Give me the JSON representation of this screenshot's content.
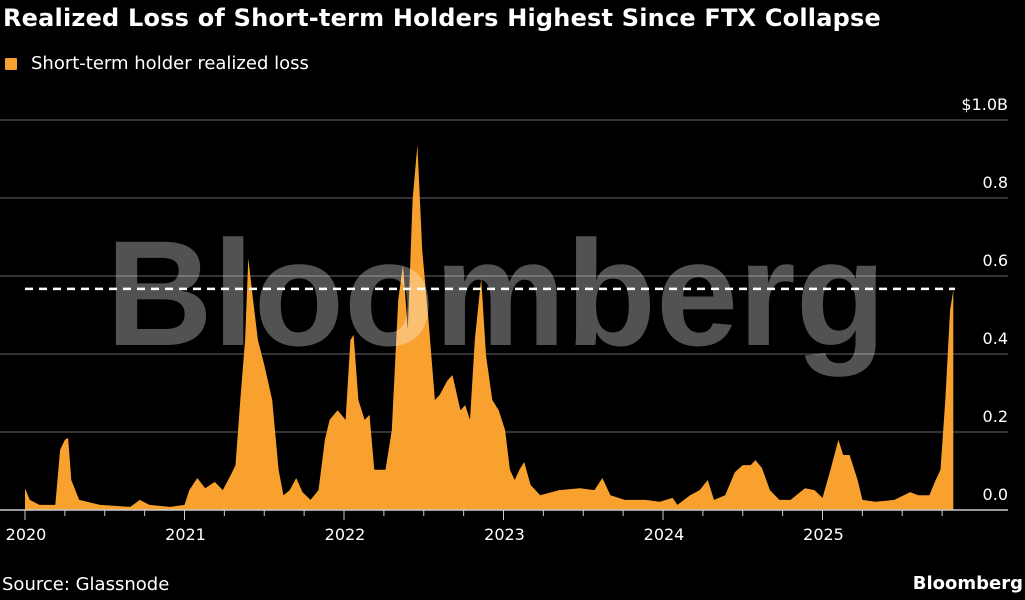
{
  "chart_data": {
    "type": "area",
    "title": "Realized Loss of Short-term Holders Highest Since FTX Collapse",
    "legend": [
      "Short-term holder realized loss"
    ],
    "legend_placement": "top-left",
    "xlabel": "",
    "ylabel": "",
    "xlim": [
      2020.0,
      2026.0
    ],
    "ylim": [
      0.0,
      1.0
    ],
    "y_ticks": [
      {
        "v": 0.0,
        "label": "0.0"
      },
      {
        "v": 0.2,
        "label": "0.2"
      },
      {
        "v": 0.4,
        "label": "0.4"
      },
      {
        "v": 0.6,
        "label": "0.6"
      },
      {
        "v": 0.8,
        "label": "0.8"
      },
      {
        "v": 1.0,
        "label": "$1.0B"
      }
    ],
    "x_ticks": [
      {
        "v": 2020,
        "label": "2020"
      },
      {
        "v": 2021,
        "label": "2021"
      },
      {
        "v": 2022,
        "label": "2022"
      },
      {
        "v": 2023,
        "label": "2023"
      },
      {
        "v": 2024,
        "label": "2024"
      },
      {
        "v": 2025,
        "label": "2025"
      }
    ],
    "grid": true,
    "reference_line": {
      "value": 0.567,
      "style": "dashed"
    },
    "series": [
      {
        "name": "Short-term holder realized loss",
        "color": "#f9a12e",
        "x": [
          2020.0,
          2020.03,
          2020.09,
          2020.19,
          2020.22,
          2020.25,
          2020.27,
          2020.29,
          2020.34,
          2020.47,
          2020.66,
          2020.72,
          2020.78,
          2020.91,
          2021.0,
          2021.03,
          2021.08,
          2021.13,
          2021.19,
          2021.24,
          2021.29,
          2021.32,
          2021.35,
          2021.38,
          2021.4,
          2021.43,
          2021.46,
          2021.5,
          2021.55,
          2021.59,
          2021.62,
          2021.66,
          2021.7,
          2021.74,
          2021.79,
          2021.84,
          2021.88,
          2021.91,
          2021.96,
          2022.01,
          2022.04,
          2022.06,
          2022.09,
          2022.13,
          2022.16,
          2022.19,
          2022.26,
          2022.3,
          2022.34,
          2022.37,
          2022.4,
          2022.43,
          2022.46,
          2022.49,
          2022.53,
          2022.57,
          2022.6,
          2022.65,
          2022.68,
          2022.73,
          2022.76,
          2022.79,
          2022.82,
          2022.86,
          2022.89,
          2022.93,
          2022.97,
          2023.01,
          2023.04,
          2023.07,
          2023.1,
          2023.13,
          2023.17,
          2023.23,
          2023.35,
          2023.48,
          2023.57,
          2023.62,
          2023.67,
          2023.76,
          2023.89,
          2023.98,
          2024.06,
          2024.09,
          2024.17,
          2024.23,
          2024.28,
          2024.32,
          2024.39,
          2024.45,
          2024.5,
          2024.55,
          2024.58,
          2024.62,
          2024.67,
          2024.73,
          2024.8,
          2024.89,
          2024.95,
          2025.0,
          2025.05,
          2025.1,
          2025.13,
          2025.17,
          2025.22,
          2025.25,
          2025.33,
          2025.45,
          2025.55,
          2025.6,
          2025.67,
          2025.71,
          2025.74,
          2025.77,
          2025.8,
          2025.82
        ],
        "values": [
          0.056,
          0.026,
          0.013,
          0.013,
          0.154,
          0.18,
          0.185,
          0.077,
          0.026,
          0.013,
          0.008,
          0.026,
          0.013,
          0.008,
          0.013,
          0.051,
          0.082,
          0.056,
          0.072,
          0.051,
          0.09,
          0.115,
          0.282,
          0.436,
          0.646,
          0.538,
          0.436,
          0.372,
          0.282,
          0.103,
          0.038,
          0.051,
          0.082,
          0.046,
          0.026,
          0.051,
          0.18,
          0.231,
          0.256,
          0.231,
          0.436,
          0.449,
          0.282,
          0.231,
          0.244,
          0.103,
          0.103,
          0.205,
          0.538,
          0.628,
          0.462,
          0.795,
          0.936,
          0.667,
          0.487,
          0.282,
          0.295,
          0.333,
          0.346,
          0.256,
          0.269,
          0.231,
          0.436,
          0.595,
          0.397,
          0.282,
          0.256,
          0.205,
          0.103,
          0.077,
          0.103,
          0.123,
          0.064,
          0.038,
          0.051,
          0.056,
          0.051,
          0.082,
          0.038,
          0.026,
          0.026,
          0.021,
          0.031,
          0.013,
          0.038,
          0.051,
          0.077,
          0.026,
          0.038,
          0.097,
          0.115,
          0.115,
          0.128,
          0.108,
          0.051,
          0.026,
          0.026,
          0.056,
          0.051,
          0.031,
          0.103,
          0.18,
          0.141,
          0.141,
          0.077,
          0.026,
          0.021,
          0.026,
          0.046,
          0.038,
          0.038,
          0.077,
          0.103,
          0.282,
          0.513,
          0.564
        ]
      }
    ]
  },
  "footer": {
    "source": "Source: Glassnode",
    "brand": "Bloomberg"
  },
  "watermark": "Bloomberg"
}
